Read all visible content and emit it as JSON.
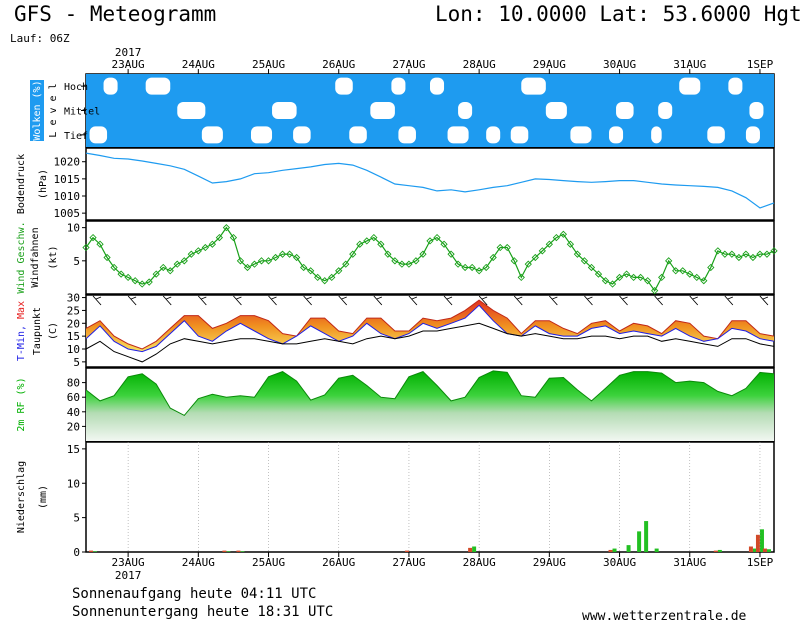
{
  "header": {
    "title": "GFS - Meteogramm",
    "location": "Lon: 10.0000 Lat: 53.6000 Hgt: 2",
    "run": "Lauf: 06Z"
  },
  "footer": {
    "sunrise": "Sonnenaufgang heute 04:11 UTC",
    "sunset": "Sonnenuntergang heute 18:31 UTC",
    "site": "www.wetterzentrale.de"
  },
  "colors": {
    "cloud": "#1e9bf0",
    "pressure": "#1e9bf0",
    "wind": "#19a019",
    "tmin": "#1e1ee6",
    "tmax": "#e61e1e",
    "rf": "#00b000",
    "precip_rain": "#22c022",
    "precip_conv": "#d24a28"
  },
  "chart_data": {
    "x_axis": {
      "top_labels": [
        "23AUG",
        "24AUG",
        "25AUG",
        "26AUG",
        "27AUG",
        "28AUG",
        "29AUG",
        "30AUG",
        "31AUG",
        "1SEP"
      ],
      "bottom_labels": [
        "23AUG",
        "24AUG",
        "25AUG",
        "26AUG",
        "27AUG",
        "28AUG",
        "29AUG",
        "30AUG",
        "31AUG",
        "1SEP"
      ],
      "year": "2017",
      "day_start": 22.4,
      "day_end": 32.2
    },
    "panels": [
      {
        "id": "clouds",
        "type": "heatmap",
        "ylabel": "Wolken (%)",
        "ylabel2": "L e v e l",
        "levels": [
          "Hoch",
          "Mittel",
          "Tief"
        ],
        "gaps": [
          {
            "level": "Hoch",
            "days": [
              [
                22.65,
                22.85
              ],
              [
                23.25,
                23.6
              ],
              [
                25.95,
                26.2
              ],
              [
                26.75,
                26.95
              ],
              [
                27.3,
                27.5
              ],
              [
                28.6,
                28.95
              ],
              [
                30.85,
                31.15
              ],
              [
                31.55,
                31.75
              ]
            ]
          },
          {
            "level": "Mittel",
            "days": [
              [
                23.7,
                24.1
              ],
              [
                25.05,
                25.4
              ],
              [
                26.45,
                26.8
              ],
              [
                27.7,
                27.9
              ],
              [
                28.95,
                29.25
              ],
              [
                29.95,
                30.2
              ],
              [
                30.55,
                30.75
              ],
              [
                31.85,
                32.05
              ]
            ]
          },
          {
            "level": "Tief",
            "days": [
              [
                22.45,
                22.7
              ],
              [
                24.05,
                24.35
              ],
              [
                24.75,
                25.05
              ],
              [
                25.35,
                25.6
              ],
              [
                26.15,
                26.4
              ],
              [
                26.85,
                27.1
              ],
              [
                27.55,
                27.85
              ],
              [
                28.1,
                28.3
              ],
              [
                28.45,
                28.7
              ],
              [
                29.3,
                29.6
              ],
              [
                29.85,
                30.05
              ],
              [
                30.45,
                30.6
              ],
              [
                31.25,
                31.5
              ],
              [
                31.8,
                32.0
              ]
            ]
          }
        ]
      },
      {
        "id": "pressure",
        "type": "line",
        "ylabel": "Bodendruck",
        "unit": "(hPa)",
        "ylim": [
          1003,
          1024
        ],
        "yticks": [
          1005,
          1010,
          1015,
          1020
        ],
        "x": [
          22.4,
          22.6,
          22.8,
          23.0,
          23.2,
          23.4,
          23.6,
          23.8,
          24.0,
          24.2,
          24.4,
          24.6,
          24.8,
          25.0,
          25.2,
          25.4,
          25.6,
          25.8,
          26.0,
          26.2,
          26.4,
          26.6,
          26.8,
          27.0,
          27.2,
          27.4,
          27.6,
          27.8,
          28.0,
          28.2,
          28.4,
          28.6,
          28.8,
          29.0,
          29.2,
          29.4,
          29.6,
          29.8,
          30.0,
          30.2,
          30.4,
          30.6,
          30.8,
          31.0,
          31.2,
          31.4,
          31.6,
          31.8,
          32.0,
          32.2
        ],
        "values": [
          1022.5,
          1021.8,
          1021.0,
          1020.8,
          1020.2,
          1019.5,
          1018.8,
          1017.8,
          1015.8,
          1013.8,
          1014.2,
          1015.0,
          1016.5,
          1016.8,
          1017.5,
          1018.0,
          1018.5,
          1019.2,
          1019.5,
          1019.0,
          1017.5,
          1015.5,
          1013.5,
          1013.0,
          1012.5,
          1011.5,
          1011.8,
          1011.2,
          1011.8,
          1012.5,
          1013.0,
          1014.0,
          1015.0,
          1014.8,
          1014.5,
          1014.2,
          1014.0,
          1014.2,
          1014.5,
          1014.5,
          1014.0,
          1013.5,
          1013.2,
          1013.0,
          1012.8,
          1012.5,
          1011.5,
          1009.5,
          1006.5,
          1008.0
        ]
      },
      {
        "id": "wind",
        "type": "line",
        "ylabel": "Wind Geschw.",
        "ylabel2": "Windfahnen",
        "unit": "(kt)",
        "ylim": [
          0,
          11
        ],
        "yticks": [
          5,
          10
        ],
        "x": [
          22.4,
          22.5,
          22.6,
          22.7,
          22.8,
          22.9,
          23.0,
          23.1,
          23.2,
          23.3,
          23.4,
          23.5,
          23.6,
          23.7,
          23.8,
          23.9,
          24.0,
          24.1,
          24.2,
          24.3,
          24.4,
          24.5,
          24.6,
          24.7,
          24.8,
          24.9,
          25.0,
          25.1,
          25.2,
          25.3,
          25.4,
          25.5,
          25.6,
          25.7,
          25.8,
          25.9,
          26.0,
          26.1,
          26.2,
          26.3,
          26.4,
          26.5,
          26.6,
          26.7,
          26.8,
          26.9,
          27.0,
          27.1,
          27.2,
          27.3,
          27.4,
          27.5,
          27.6,
          27.7,
          27.8,
          27.9,
          28.0,
          28.1,
          28.2,
          28.3,
          28.4,
          28.5,
          28.6,
          28.7,
          28.8,
          28.9,
          29.0,
          29.1,
          29.2,
          29.3,
          29.4,
          29.5,
          29.6,
          29.7,
          29.8,
          29.9,
          30.0,
          30.1,
          30.2,
          30.3,
          30.4,
          30.5,
          30.6,
          30.7,
          30.8,
          30.9,
          31.0,
          31.1,
          31.2,
          31.3,
          31.4,
          31.5,
          31.6,
          31.7,
          31.8,
          31.9,
          32.0,
          32.1,
          32.2
        ],
        "values": [
          7,
          8.5,
          7.5,
          5.5,
          4,
          3,
          2.5,
          2,
          1.5,
          1.8,
          3,
          4,
          3.5,
          4.5,
          5,
          6,
          6.5,
          7,
          7.5,
          8.5,
          10,
          8.5,
          5,
          4,
          4.5,
          5,
          5,
          5.5,
          6,
          6,
          5.5,
          4,
          3.5,
          2.5,
          2,
          2.5,
          3.5,
          4.5,
          6,
          7.5,
          8,
          8.5,
          7.5,
          6,
          5,
          4.5,
          4.5,
          5,
          6,
          8,
          8.5,
          7.5,
          6,
          4.5,
          4,
          4,
          3.5,
          4,
          5.5,
          7,
          7,
          5,
          2.5,
          4.5,
          5.5,
          6.5,
          7.5,
          8.5,
          9,
          7.5,
          6,
          5,
          4,
          3,
          2,
          1.5,
          2.5,
          3,
          2.5,
          2.5,
          2,
          0.5,
          2.5,
          5,
          3.5,
          3.5,
          3,
          2.5,
          2,
          4,
          6.5,
          6,
          6,
          5.5,
          6,
          5.5,
          6,
          6,
          6.5
        ]
      },
      {
        "id": "temperature",
        "type": "area",
        "ylabel": "T-Min, Max",
        "ylabel2": "Taupunkt",
        "unit": "(C)",
        "ylim": [
          3,
          31
        ],
        "yticks": [
          5,
          10,
          15,
          20,
          25,
          30
        ],
        "x": [
          22.4,
          22.6,
          22.8,
          23.0,
          23.2,
          23.4,
          23.6,
          23.8,
          24.0,
          24.2,
          24.4,
          24.6,
          24.8,
          25.0,
          25.2,
          25.4,
          25.6,
          25.8,
          26.0,
          26.2,
          26.4,
          26.6,
          26.8,
          27.0,
          27.2,
          27.4,
          27.6,
          27.8,
          28.0,
          28.2,
          28.4,
          28.6,
          28.8,
          29.0,
          29.2,
          29.4,
          29.6,
          29.8,
          30.0,
          30.2,
          30.4,
          30.6,
          30.8,
          31.0,
          31.2,
          31.4,
          31.6,
          31.8,
          32.0,
          32.2
        ],
        "tmax": [
          18,
          21,
          15,
          12,
          10,
          13,
          18,
          23,
          23,
          18,
          20,
          23,
          23,
          21,
          16,
          15,
          22,
          22,
          17,
          16,
          22,
          22,
          17,
          17,
          22,
          21,
          22,
          25,
          29,
          25,
          22,
          16,
          21,
          21,
          18,
          16,
          20,
          21,
          17,
          20,
          19,
          16,
          21,
          20,
          15,
          14,
          21,
          21,
          16,
          15
        ],
        "tmin": [
          14,
          19,
          13,
          10,
          9,
          11,
          16,
          21,
          15,
          13,
          17,
          20,
          17,
          14,
          12,
          15,
          19,
          16,
          13,
          15,
          20,
          16,
          14,
          16,
          20,
          18,
          20,
          22,
          27,
          21,
          16,
          15,
          19,
          16,
          15,
          15,
          18,
          19,
          16,
          17,
          16,
          15,
          18,
          15,
          13,
          14,
          18,
          17,
          14,
          13
        ],
        "dewpoint": [
          10,
          13,
          9,
          7,
          5,
          8,
          12,
          14,
          13,
          12,
          13,
          14,
          14,
          13,
          12,
          12,
          13,
          14,
          13,
          12,
          14,
          15,
          14,
          15,
          17,
          17,
          18,
          19,
          20,
          18,
          16,
          15,
          16,
          15,
          14,
          14,
          15,
          15,
          14,
          15,
          15,
          13,
          14,
          13,
          12,
          11,
          14,
          14,
          12,
          11
        ]
      },
      {
        "id": "humidity",
        "type": "area",
        "ylabel": "2m RF (%)",
        "ylim": [
          0,
          100
        ],
        "yticks": [
          20,
          40,
          60,
          80
        ],
        "x": [
          22.4,
          22.6,
          22.8,
          23.0,
          23.2,
          23.4,
          23.6,
          23.8,
          24.0,
          24.2,
          24.4,
          24.6,
          24.8,
          25.0,
          25.2,
          25.4,
          25.6,
          25.8,
          26.0,
          26.2,
          26.4,
          26.6,
          26.8,
          27.0,
          27.2,
          27.4,
          27.6,
          27.8,
          28.0,
          28.2,
          28.4,
          28.6,
          28.8,
          29.0,
          29.2,
          29.4,
          29.6,
          29.8,
          30.0,
          30.2,
          30.4,
          30.6,
          30.8,
          31.0,
          31.2,
          31.4,
          31.6,
          31.8,
          32.0,
          32.2
        ],
        "values": [
          70,
          55,
          62,
          88,
          92,
          78,
          45,
          35,
          58,
          64,
          60,
          62,
          60,
          88,
          95,
          82,
          56,
          63,
          86,
          90,
          76,
          60,
          58,
          88,
          95,
          76,
          55,
          60,
          87,
          96,
          94,
          62,
          60,
          86,
          87,
          70,
          55,
          72,
          90,
          95,
          95,
          93,
          80,
          82,
          80,
          68,
          62,
          72,
          94,
          92
        ]
      },
      {
        "id": "precipitation",
        "type": "bar",
        "ylabel": "Niederschlag",
        "unit": "(mm)",
        "ylim": [
          0,
          16
        ],
        "yticks": [
          0,
          5,
          10,
          15
        ],
        "bars": [
          {
            "day": 22.5,
            "rain": 0.1,
            "conv": 0.2
          },
          {
            "day": 24.4,
            "rain": 0.1,
            "conv": 0.2
          },
          {
            "day": 24.6,
            "rain": 0.1,
            "conv": 0.2
          },
          {
            "day": 27.0,
            "rain": 0.0,
            "conv": 0.2
          },
          {
            "day": 27.9,
            "rain": 0.8,
            "conv": 0.6
          },
          {
            "day": 29.9,
            "rain": 0.5,
            "conv": 0.3
          },
          {
            "day": 30.1,
            "rain": 1.0,
            "conv": 0.0
          },
          {
            "day": 30.25,
            "rain": 3.0,
            "conv": 0.0
          },
          {
            "day": 30.35,
            "rain": 4.5,
            "conv": 0.0
          },
          {
            "day": 30.5,
            "rain": 0.5,
            "conv": 0.0
          },
          {
            "day": 31.4,
            "rain": 0.3,
            "conv": 0.2
          },
          {
            "day": 31.9,
            "rain": 0.5,
            "conv": 0.8
          },
          {
            "day": 32.0,
            "rain": 3.3,
            "conv": 2.5
          },
          {
            "day": 32.1,
            "rain": 0.4,
            "conv": 0.5
          }
        ]
      }
    ]
  }
}
